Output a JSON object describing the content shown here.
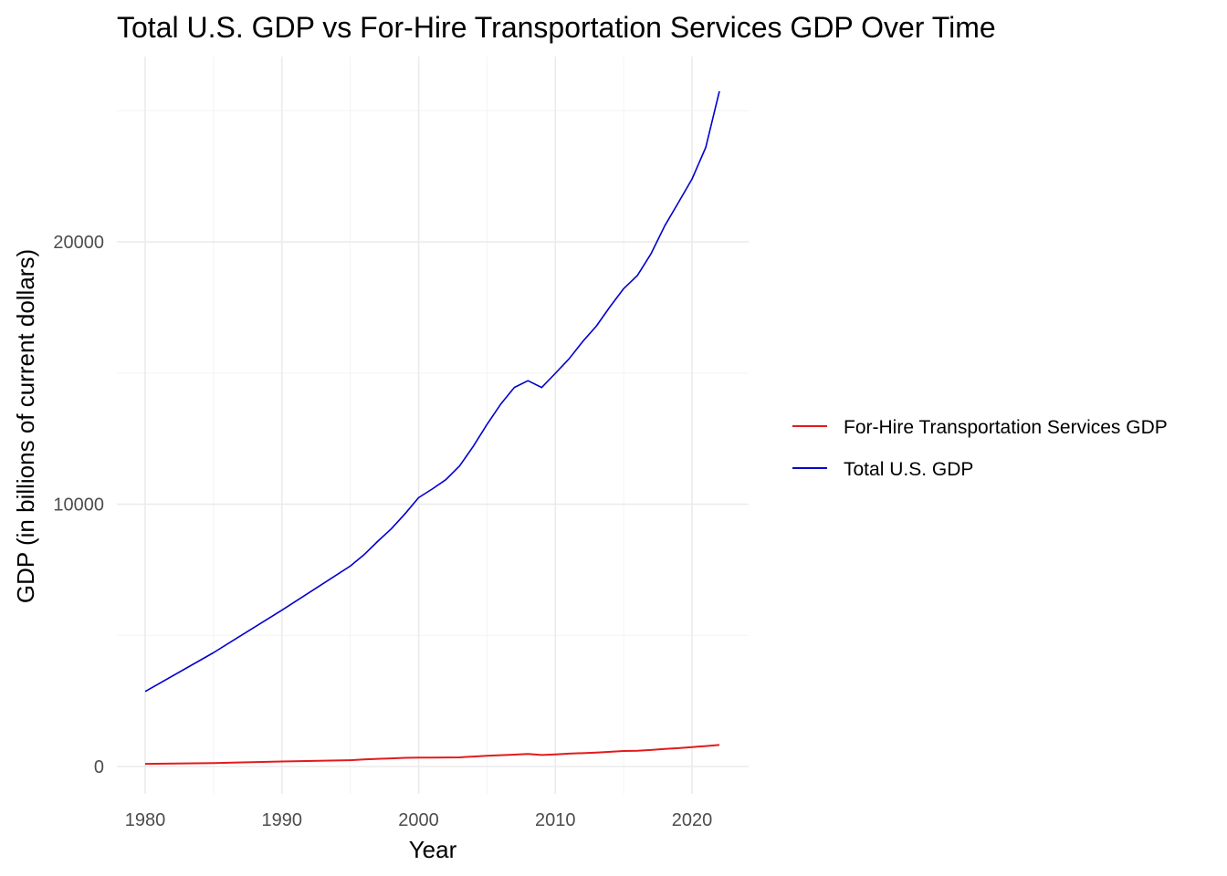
{
  "chart_data": {
    "type": "line",
    "title": "Total U.S. GDP vs For-Hire Transportation Services GDP Over Time",
    "xlabel": "Year",
    "ylabel": "GDP (in billions of current dollars)",
    "xlim": [
      1980,
      2022
    ],
    "ylim": [
      0,
      25744
    ],
    "x_ticks": [
      1980,
      1990,
      2000,
      2010,
      2020
    ],
    "x_tick_labels": [
      "1980",
      "1990",
      "2000",
      "2010",
      "2020"
    ],
    "y_ticks": [
      0,
      10000,
      20000
    ],
    "y_tick_labels": [
      "0",
      "10000",
      "20000"
    ],
    "grid": true,
    "legend_position": "right",
    "x": [
      1980,
      1985,
      1990,
      1995,
      1996,
      1997,
      1998,
      1999,
      2000,
      2001,
      2002,
      2003,
      2004,
      2005,
      2006,
      2007,
      2008,
      2009,
      2010,
      2011,
      2012,
      2013,
      2014,
      2015,
      2016,
      2017,
      2018,
      2019,
      2020,
      2021,
      2022
    ],
    "series": [
      {
        "name": "For-Hire Transportation Services GDP",
        "color": "#e31a1c",
        "values": [
          100,
          130,
          190,
          240,
          270,
          290,
          310,
          330,
          340,
          340,
          345,
          350,
          380,
          410,
          430,
          450,
          480,
          440,
          460,
          490,
          510,
          530,
          560,
          590,
          600,
          630,
          670,
          700,
          740,
          780,
          820
        ]
      },
      {
        "name": "Total U.S. GDP",
        "color": "#0000cd",
        "values": [
          2860,
          4340,
          5960,
          7640,
          8070,
          8580,
          9060,
          9630,
          10250,
          10580,
          10940,
          11460,
          12210,
          13040,
          13810,
          14450,
          14710,
          14450,
          14990,
          15540,
          16200,
          16790,
          17530,
          18220,
          18720,
          19550,
          20610,
          21500,
          22400,
          23600,
          25744
        ]
      }
    ]
  }
}
